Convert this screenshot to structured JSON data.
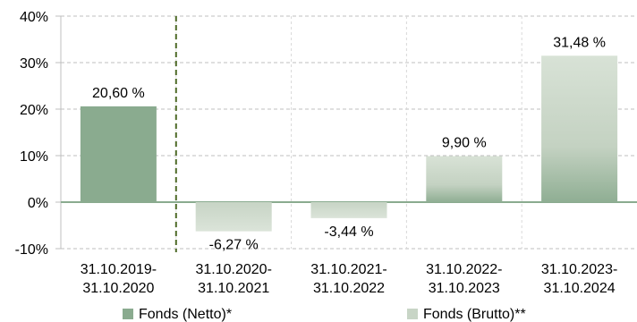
{
  "chart_data": {
    "type": "bar",
    "categories": [
      [
        "31.10.2019-",
        "31.10.2020"
      ],
      [
        "31.10.2020-",
        "31.10.2021"
      ],
      [
        "31.10.2021-",
        "31.10.2022"
      ],
      [
        "31.10.2022-",
        "31.10.2023"
      ],
      [
        "31.10.2023-",
        "31.10.2024"
      ]
    ],
    "values": [
      20.6,
      -6.27,
      -3.44,
      9.9,
      31.48
    ],
    "data_labels": [
      "20,60 %",
      "-6,27 %",
      "-3,44 %",
      "9,90 %",
      "31,48 %"
    ],
    "bar_series": [
      "Fonds (Netto)*",
      "Fonds (Brutto)**",
      "Fonds (Brutto)**",
      "Fonds (Brutto)**",
      "Fonds (Brutto)**"
    ],
    "ylim": [
      -10,
      40
    ],
    "yticks": [
      -10,
      0,
      10,
      20,
      30,
      40
    ],
    "ytick_labels": [
      "-10%",
      "0%",
      "10%",
      "20%",
      "30%",
      "40%"
    ],
    "grid": "horizontal dashed",
    "divider": "dashed vertical line between first and second category",
    "legend_position": "bottom",
    "series": [
      {
        "name": "Fonds (Netto)*",
        "color": "#8aab8f"
      },
      {
        "name": "Fonds (Brutto)**",
        "color": "#c8d5c6"
      }
    ],
    "colors": {
      "netto_bar": "#8aab8f",
      "brutto_top": "#d4dfd2",
      "brutto_bottom": "#8aab8f",
      "axis": "#8aab8f",
      "grid": "#bfbfbf",
      "divider": "#4f6b28"
    }
  }
}
